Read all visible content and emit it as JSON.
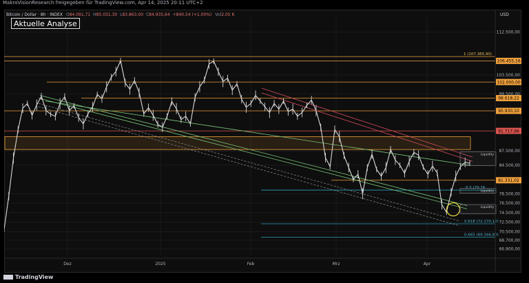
{
  "header": {
    "credit": "MakroVisionResearch freigegeben für TradingView.com, Apr 14, 2025 20:11 UTC+2"
  },
  "chart_header": {
    "symbol": "Bitcoin / Dollar · 8h · INDEX",
    "open_label": "O",
    "open": "84.091,71",
    "high_label": "H",
    "high": "85.031,30",
    "low_label": "L",
    "low": "83.863,00",
    "close_label": "C",
    "close": "84.935,64",
    "change": "+840,54 (+1,00%)",
    "vol_label": "Vol",
    "vol": "2,05 K"
  },
  "analysis_button": "Aktuelle Analyse",
  "currency": "USD",
  "footer": {
    "brand": "TradingView"
  },
  "colors": {
    "background": "#0e0e0e",
    "candle": "#d9d9d9",
    "level_orange": "#f0a03c",
    "level_red": "#d9544f",
    "fib_line": "#2aa0b8",
    "fib_text": "#4fb0d0",
    "trend_green": "#7bc67b",
    "trend_red": "#d24a5a",
    "circle": "#f0e040"
  },
  "chart_data": {
    "type": "line",
    "title": "Bitcoin / Dollar · 8h · INDEX",
    "ylabel": "USD",
    "ylim": [
      65500,
      115500
    ],
    "x_ticks": [
      "Dez",
      "2025",
      "Feb",
      "Mrz",
      "Apr"
    ],
    "y_ticks": [
      "112.500,00",
      "103.500,00",
      "99.500,00",
      "87.500,00",
      "84.500,00",
      "78.500,00",
      "76.500,00",
      "74.500,00",
      "72.500,00",
      "70.500,00",
      "68.700,00",
      "66.900,00"
    ],
    "y_tick_values": [
      112500,
      103500,
      99500,
      87500,
      84500,
      78500,
      76500,
      74500,
      72500,
      70500,
      68700,
      66900
    ],
    "series": [
      {
        "values": [
          71000,
          78000,
          86000,
          92000,
          96500,
          97500,
          95000,
          97200,
          99000,
          96000,
          95200,
          94800,
          97500,
          98900,
          96000,
          97000,
          94500,
          93200,
          95300,
          96800,
          99400,
          98500,
          101000,
          103000,
          104200,
          106500,
          101800,
          100500,
          102300,
          99800,
          95300,
          96600,
          95000,
          93100,
          92500,
          94800,
          97900,
          96400,
          94100,
          94800,
          93200,
          98800,
          101000,
          102400,
          105800,
          106400,
          104200,
          102100,
          102800,
          100300,
          101600,
          98400,
          96700,
          97500,
          99200,
          98000,
          96800,
          95600,
          97500,
          96300,
          98000,
          95800,
          96300,
          94800,
          95600,
          97100,
          98200,
          96000,
          92500,
          86100,
          84200,
          92000,
          90500,
          86500,
          84000,
          81500,
          82600,
          78500,
          84000,
          86800,
          83600,
          82200,
          84000,
          87800,
          85600,
          84500,
          82800,
          85300,
          87200,
          86600,
          84100,
          82600,
          84300,
          82900,
          76200,
          74600,
          78800,
          82200,
          84200,
          85100,
          84900
        ]
      }
    ],
    "price_levels": [
      {
        "label": "106.455,16",
        "value": 106455,
        "color": "orange"
      },
      {
        "label": "102.000,00",
        "value": 102000,
        "color": "orange"
      },
      {
        "label": "98.618,22",
        "value": 98618,
        "color": "orange"
      },
      {
        "label": "95.930,10",
        "value": 95930,
        "color": "orange"
      },
      {
        "label": "91.717,96",
        "value": 91718,
        "color": "red"
      },
      {
        "label": "81.331,02",
        "value": 81331,
        "color": "orange"
      }
    ],
    "fib_levels": [
      {
        "label": "1 (107.365,90)",
        "value": 107366
      },
      {
        "label": "0.5 (79.26",
        "value": 79260
      },
      {
        "label": "0.618 (72.170,12)",
        "value": 72170
      },
      {
        "label": "0.665 (69.344,80)",
        "value": 69345
      }
    ],
    "liquidity_labels": [
      "Liquidity",
      "Liquidity",
      "Liquidity"
    ]
  }
}
